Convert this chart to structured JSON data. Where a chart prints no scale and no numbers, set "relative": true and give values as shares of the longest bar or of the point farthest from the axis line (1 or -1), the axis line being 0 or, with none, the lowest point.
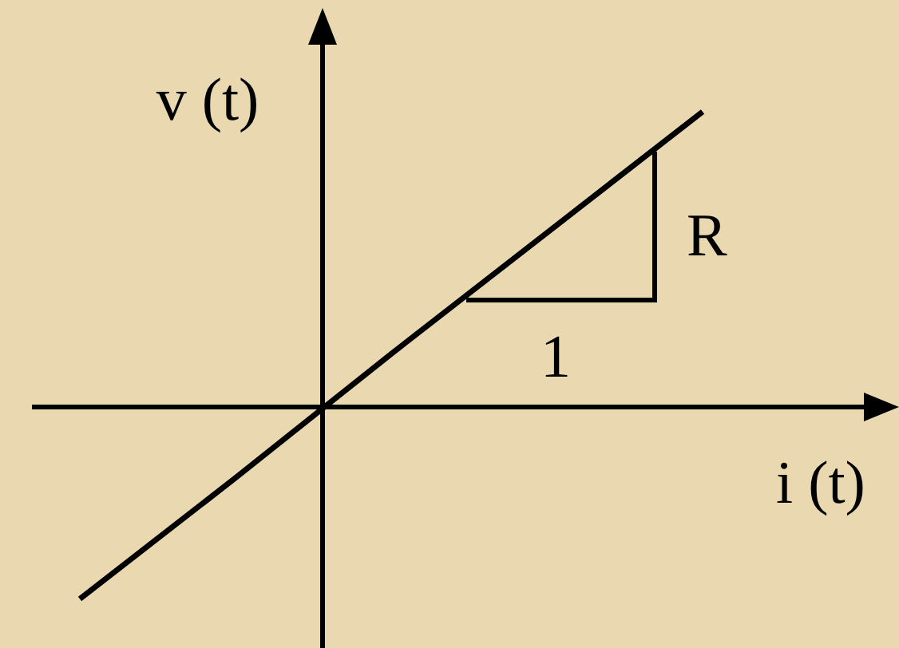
{
  "chart_data": {
    "type": "line",
    "relative": true,
    "xlabel": "i (t)",
    "ylabel": "v (t)",
    "categories": [
      null,
      null,
      null,
      null,
      null
    ],
    "series": [
      {
        "color": "#000000",
        "values": [
          -0.65,
          -0.24,
          0.18,
          0.59,
          1
        ]
      }
    ],
    "annotations": [
      "R",
      "1"
    ],
    "marker": "none",
    "line_style": "solid"
  }
}
